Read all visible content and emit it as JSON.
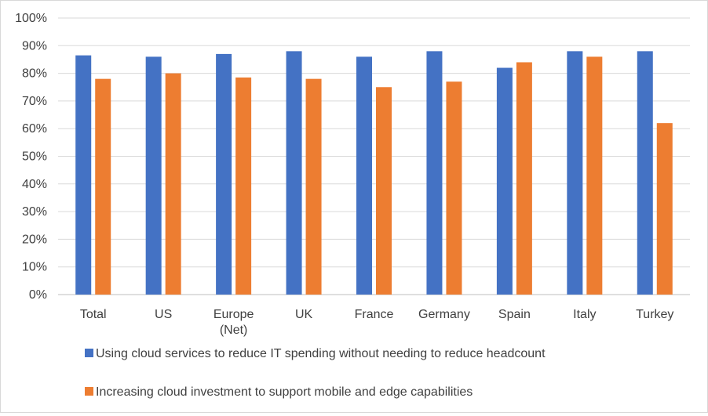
{
  "chart_data": {
    "type": "bar",
    "categories": [
      [
        "Total"
      ],
      [
        "US"
      ],
      [
        "Europe",
        "(Net)"
      ],
      [
        "UK"
      ],
      [
        "France"
      ],
      [
        "Germany"
      ],
      [
        "Spain"
      ],
      [
        "Italy"
      ],
      [
        "Turkey"
      ]
    ],
    "series": [
      {
        "name": "Using cloud services to reduce IT spending without needing to reduce headcount",
        "color": "#4472c4",
        "values": [
          86.5,
          86,
          87,
          88,
          86,
          88,
          82,
          88,
          88
        ]
      },
      {
        "name": "Increasing cloud investment to support mobile and edge capabilities",
        "color": "#ed7d31",
        "values": [
          78,
          80,
          78.5,
          78,
          75,
          77,
          84,
          86,
          62
        ]
      }
    ],
    "ylim": [
      0,
      100
    ],
    "yticks": [
      "0%",
      "10%",
      "20%",
      "30%",
      "40%",
      "50%",
      "60%",
      "70%",
      "80%",
      "90%",
      "100%"
    ],
    "grid": true,
    "legend_position": "bottom"
  }
}
